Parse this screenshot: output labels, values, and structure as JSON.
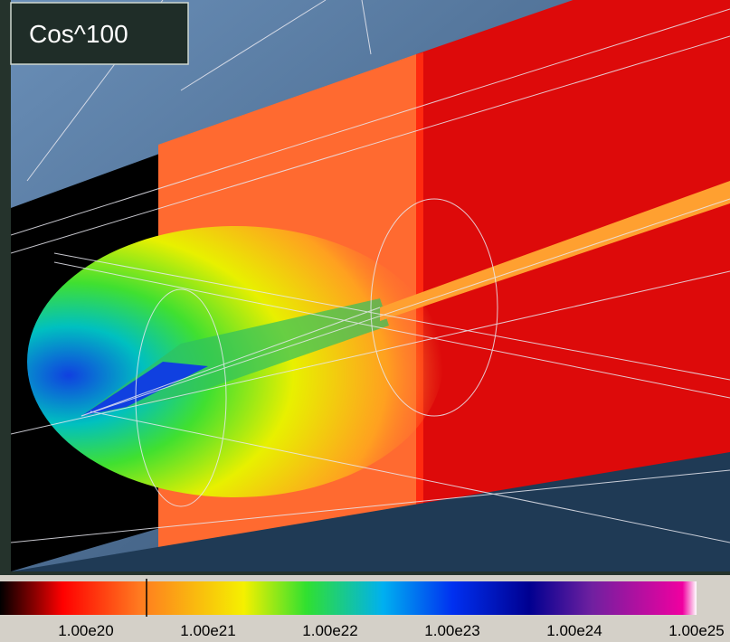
{
  "overlay_label": "Cos^100",
  "colorbar": {
    "tick_labels": [
      "1.00e20",
      "1.00e21",
      "1.00e22",
      "1.00e23",
      "1.00e24",
      "1.00e25"
    ]
  }
}
